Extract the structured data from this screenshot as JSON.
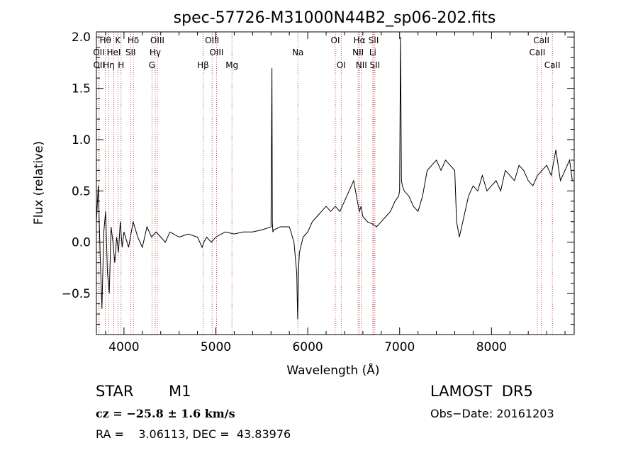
{
  "chart_data": {
    "type": "line",
    "title": "spec-57726-M31000N44B2_sp06-202.fits",
    "xlabel": "Wavelength (Å)",
    "ylabel": "Flux (relative)",
    "xlim": [
      3700,
      8900
    ],
    "ylim": [
      -0.9,
      2.05
    ],
    "x_ticks": [
      4000,
      5000,
      6000,
      7000,
      8000
    ],
    "y_ticks": [
      -0.5,
      0.0,
      0.5,
      1.0,
      1.5,
      2.0
    ],
    "x_tick_labels": [
      "4000",
      "5000",
      "6000",
      "7000",
      "8000"
    ],
    "y_tick_labels": [
      "−0.5",
      "0.0",
      "0.5",
      "1.0",
      "1.5",
      "2.0"
    ],
    "series": [
      {
        "x": [
          3700,
          3720,
          3740,
          3760,
          3780,
          3800,
          3820,
          3840,
          3860,
          3880,
          3900,
          3920,
          3940,
          3960,
          3980,
          4000,
          4050,
          4100,
          4150,
          4200,
          4250,
          4300,
          4350,
          4400,
          4450,
          4500,
          4600,
          4700,
          4800,
          4850,
          4870,
          4900,
          4950,
          5000,
          5100,
          5200,
          5300,
          5400,
          5500,
          5600,
          5610,
          5615,
          5620,
          5630,
          5700,
          5800,
          5850,
          5880,
          5890,
          5895,
          5900,
          5910,
          5950,
          6000,
          6050,
          6100,
          6150,
          6200,
          6250,
          6300,
          6350,
          6400,
          6450,
          6500,
          6520,
          6540,
          6562,
          6580,
          6600,
          6650,
          6700,
          6750,
          6800,
          6850,
          6900,
          6950,
          6990,
          7000,
          7010,
          7020,
          7030,
          7050,
          7100,
          7150,
          7200,
          7250,
          7300,
          7350,
          7400,
          7450,
          7500,
          7550,
          7600,
          7620,
          7650,
          7700,
          7750,
          7800,
          7850,
          7900,
          7950,
          8000,
          8050,
          8100,
          8150,
          8200,
          8250,
          8300,
          8350,
          8400,
          8450,
          8500,
          8550,
          8600,
          8650,
          8700,
          8750,
          8800,
          8850,
          8880
        ],
        "y": [
          0.2,
          0.55,
          -0.1,
          -0.65,
          0.1,
          0.3,
          -0.3,
          -0.5,
          0.15,
          0.0,
          -0.2,
          0.05,
          -0.1,
          0.2,
          -0.05,
          0.1,
          -0.05,
          0.2,
          0.05,
          -0.05,
          0.15,
          0.05,
          0.1,
          0.05,
          0.0,
          0.1,
          0.05,
          0.08,
          0.05,
          -0.05,
          0.0,
          0.05,
          0.0,
          0.05,
          0.1,
          0.08,
          0.1,
          0.1,
          0.12,
          0.15,
          1.7,
          0.2,
          0.1,
          0.12,
          0.15,
          0.15,
          0.0,
          -0.3,
          -0.75,
          -0.5,
          -0.25,
          -0.1,
          0.05,
          0.1,
          0.2,
          0.25,
          0.3,
          0.35,
          0.3,
          0.35,
          0.3,
          0.4,
          0.5,
          0.6,
          0.5,
          0.4,
          0.3,
          0.35,
          0.25,
          0.2,
          0.18,
          0.15,
          0.2,
          0.25,
          0.3,
          0.4,
          0.45,
          0.5,
          2.0,
          0.6,
          0.55,
          0.5,
          0.45,
          0.35,
          0.3,
          0.45,
          0.7,
          0.75,
          0.8,
          0.7,
          0.8,
          0.75,
          0.7,
          0.2,
          0.05,
          0.25,
          0.45,
          0.55,
          0.5,
          0.65,
          0.5,
          0.55,
          0.6,
          0.5,
          0.7,
          0.65,
          0.6,
          0.75,
          0.7,
          0.6,
          0.55,
          0.65,
          0.7,
          0.75,
          0.65,
          0.9,
          0.6,
          0.7,
          0.8,
          0.6
        ]
      }
    ],
    "spectral_lines": [
      {
        "label": "Hθ",
        "x": 3798,
        "row": 0
      },
      {
        "label": "K",
        "x": 3934,
        "row": 0
      },
      {
        "label": "Hδ",
        "x": 4102,
        "row": 0
      },
      {
        "label": "OIII",
        "x": 4363,
        "row": 0
      },
      {
        "label": "OIII",
        "x": 4959,
        "row": 0
      },
      {
        "label": "OI",
        "x": 6300,
        "row": 0
      },
      {
        "label": "Hα",
        "x": 6563,
        "row": 0
      },
      {
        "label": "SII",
        "x": 6717,
        "row": 0
      },
      {
        "label": "CaII",
        "x": 8542,
        "row": 0
      },
      {
        "label": "OII",
        "x": 3727,
        "row": 1
      },
      {
        "label": "HeI",
        "x": 3889,
        "row": 1
      },
      {
        "label": "SII",
        "x": 4072,
        "row": 1
      },
      {
        "label": "Hγ",
        "x": 4340,
        "row": 1
      },
      {
        "label": "OIII",
        "x": 5007,
        "row": 1
      },
      {
        "label": "Na",
        "x": 5893,
        "row": 1
      },
      {
        "label": "NII",
        "x": 6548,
        "row": 1
      },
      {
        "label": "Li",
        "x": 6708,
        "row": 1
      },
      {
        "label": "CaII",
        "x": 8498,
        "row": 1
      },
      {
        "label": "OII",
        "x": 3729,
        "row": 2
      },
      {
        "label": "Hη",
        "x": 3835,
        "row": 2
      },
      {
        "label": "H",
        "x": 3968,
        "row": 2
      },
      {
        "label": "G",
        "x": 4305,
        "row": 2
      },
      {
        "label": "Hβ",
        "x": 4861,
        "row": 2
      },
      {
        "label": "Mg",
        "x": 5175,
        "row": 2
      },
      {
        "label": "OI",
        "x": 6364,
        "row": 2
      },
      {
        "label": "NII",
        "x": 6584,
        "row": 2
      },
      {
        "label": "SII",
        "x": 6731,
        "row": 2
      },
      {
        "label": "CaII",
        "x": 8662,
        "row": 2
      }
    ],
    "grid": false,
    "colors": {
      "spectrum": "#000000",
      "lines": "#b22222"
    }
  },
  "info": {
    "object_type": "STAR",
    "subclass": "M1",
    "survey": "LAMOST  DR5",
    "cz": "cz = −25.8 ± 1.6 km/s",
    "obs_date": "Obs−Date: 20161203",
    "coords": "RA =    3.06113, DEC =  43.83976"
  }
}
